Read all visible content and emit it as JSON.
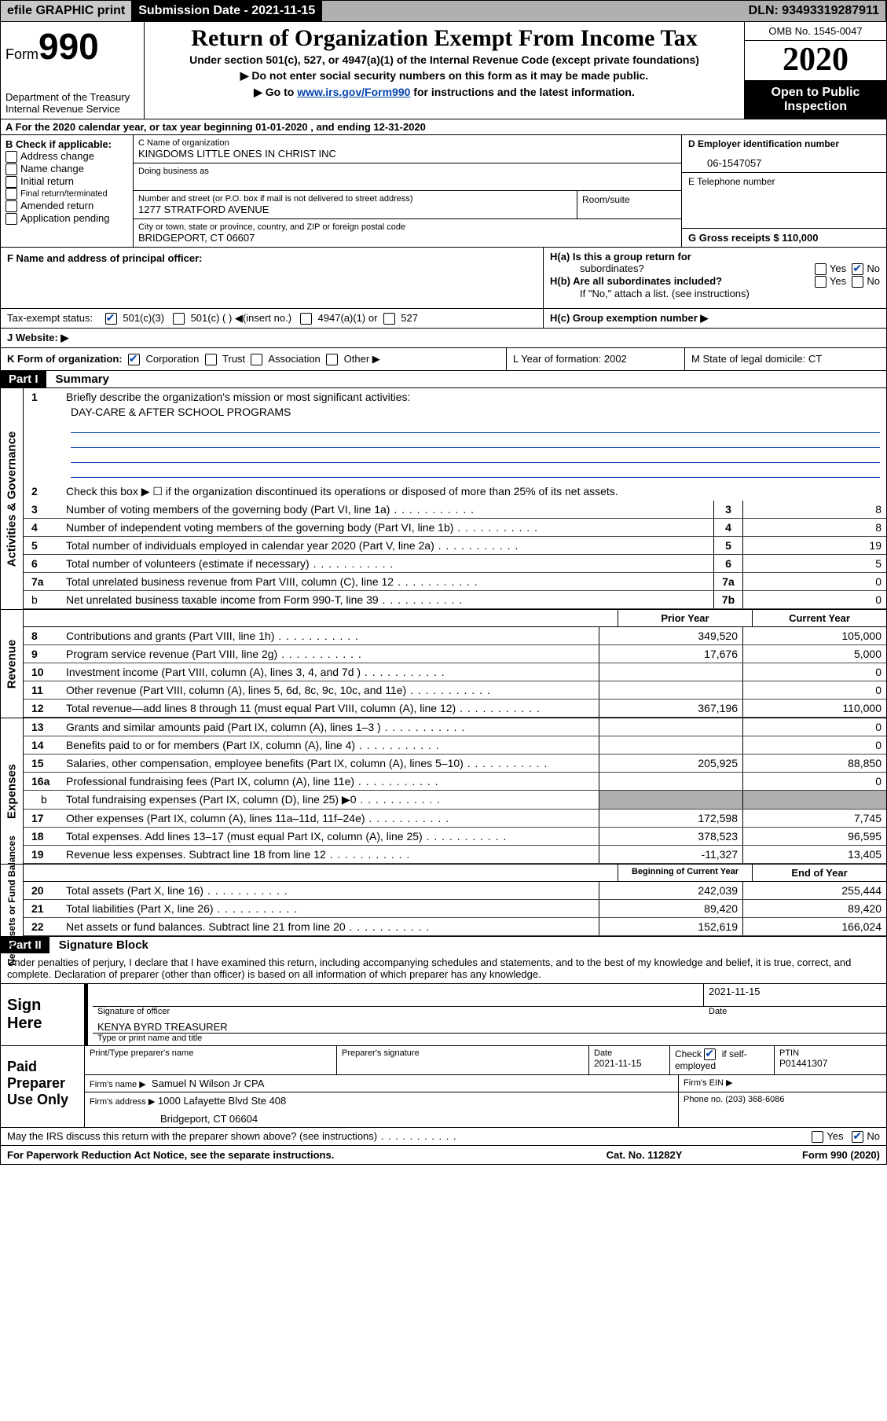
{
  "topbar": {
    "efile": "efile GRAPHIC print",
    "submission_label": "Submission Date - 2021-11-15",
    "dln_label": "DLN: 93493319287911"
  },
  "header": {
    "form_label": "Form",
    "form_number": "990",
    "dept1": "Department of the Treasury",
    "dept2": "Internal Revenue Service",
    "title": "Return of Organization Exempt From Income Tax",
    "sub": "Under section 501(c), 527, or 4947(a)(1) of the Internal Revenue Code (except private foundations)",
    "note1": "▶ Do not enter social security numbers on this form as it may be made public.",
    "note2_pre": "▶ Go to ",
    "note2_link": "www.irs.gov/Form990",
    "note2_post": " for instructions and the latest information.",
    "omb": "OMB No. 1545-0047",
    "year": "2020",
    "open_pub": "Open to Public Inspection"
  },
  "row_a": {
    "text": "A For the 2020 calendar year, or tax year beginning 01-01-2020    , and ending 12-31-2020"
  },
  "col_b": {
    "label": "B Check if applicable:",
    "opts": [
      "Address change",
      "Name change",
      "Initial return",
      "Final return/terminated",
      "Amended return",
      "Application pending"
    ]
  },
  "col_c": {
    "name_lbl": "C Name of organization",
    "name_val": "KINGDOMS LITTLE ONES IN CHRIST INC",
    "dba_lbl": "Doing business as",
    "street_lbl": "Number and street (or P.O. box if mail is not delivered to street address)",
    "street_val": "1277 STRATFORD AVENUE",
    "room_lbl": "Room/suite",
    "city_lbl": "City or town, state or province, country, and ZIP or foreign postal code",
    "city_val": "BRIDGEPORT, CT  06607"
  },
  "col_de": {
    "d_lbl": "D Employer identification number",
    "d_val": "06-1547057",
    "e_lbl": "E Telephone number",
    "g_lbl": "G Gross receipts $ 110,000"
  },
  "f": {
    "lbl": "F  Name and address of principal officer:"
  },
  "h": {
    "a_lbl": "H(a)  Is this a group return for",
    "a_lbl2": "subordinates?",
    "b_lbl": "H(b)  Are all subordinates included?",
    "note": "If \"No,\" attach a list. (see instructions)",
    "c_lbl": "H(c)  Group exemption number ▶",
    "yes": "Yes",
    "no": "No"
  },
  "i": {
    "lbl": "Tax-exempt status:",
    "opts": [
      "501(c)(3)",
      "501(c) (  ) ◀(insert no.)",
      "4947(a)(1) or",
      "527"
    ]
  },
  "j": {
    "lbl": "J   Website: ▶"
  },
  "k": {
    "lbl": "K Form of organization:",
    "opts": [
      "Corporation",
      "Trust",
      "Association",
      "Other ▶"
    ]
  },
  "l": {
    "text": "L Year of formation: 2002"
  },
  "m": {
    "text": "M State of legal domicile: CT"
  },
  "part1": {
    "header": "Part I",
    "title": "Summary"
  },
  "summary": {
    "l1_lbl": "Briefly describe the organization's mission or most significant activities:",
    "l1_val": "DAY-CARE & AFTER SCHOOL PROGRAMS",
    "l2_lbl": "Check this box ▶ ☐  if the organization discontinued its operations or disposed of more than 25% of its net assets."
  },
  "side_labels": {
    "s1": "Activities & Governance",
    "s2": "Revenue",
    "s3": "Expenses",
    "s4": "Net Assets or Fund Balances"
  },
  "lines_a": [
    {
      "n": "3",
      "d": "Number of voting members of the governing body (Part VI, line 1a)",
      "b": "3",
      "v": "8"
    },
    {
      "n": "4",
      "d": "Number of independent voting members of the governing body (Part VI, line 1b)",
      "b": "4",
      "v": "8"
    },
    {
      "n": "5",
      "d": "Total number of individuals employed in calendar year 2020 (Part V, line 2a)",
      "b": "5",
      "v": "19"
    },
    {
      "n": "6",
      "d": "Total number of volunteers (estimate if necessary)",
      "b": "6",
      "v": "5"
    },
    {
      "n": "7a",
      "d": "Total unrelated business revenue from Part VIII, column (C), line 12",
      "b": "7a",
      "v": "0"
    },
    {
      "n": "",
      "d": "Net unrelated business taxable income from Form 990-T, line 39",
      "b": "7b",
      "v": "0",
      "sub": "b"
    }
  ],
  "col_headers": {
    "prior": "Prior Year",
    "current": "Current Year",
    "begin": "Beginning of Current Year",
    "end": "End of Year"
  },
  "lines_rev": [
    {
      "n": "8",
      "d": "Contributions and grants (Part VIII, line 1h)",
      "p": "349,520",
      "c": "105,000"
    },
    {
      "n": "9",
      "d": "Program service revenue (Part VIII, line 2g)",
      "p": "17,676",
      "c": "5,000"
    },
    {
      "n": "10",
      "d": "Investment income (Part VIII, column (A), lines 3, 4, and 7d )",
      "p": "",
      "c": "0"
    },
    {
      "n": "11",
      "d": "Other revenue (Part VIII, column (A), lines 5, 6d, 8c, 9c, 10c, and 11e)",
      "p": "",
      "c": "0"
    },
    {
      "n": "12",
      "d": "Total revenue—add lines 8 through 11 (must equal Part VIII, column (A), line 12)",
      "p": "367,196",
      "c": "110,000"
    }
  ],
  "lines_exp": [
    {
      "n": "13",
      "d": "Grants and similar amounts paid (Part IX, column (A), lines 1–3 )",
      "p": "",
      "c": "0"
    },
    {
      "n": "14",
      "d": "Benefits paid to or for members (Part IX, column (A), line 4)",
      "p": "",
      "c": "0"
    },
    {
      "n": "15",
      "d": "Salaries, other compensation, employee benefits (Part IX, column (A), lines 5–10)",
      "p": "205,925",
      "c": "88,850"
    },
    {
      "n": "16a",
      "d": "Professional fundraising fees (Part IX, column (A), line 11e)",
      "p": "",
      "c": "0"
    },
    {
      "n": "b",
      "d": "Total fundraising expenses (Part IX, column (D), line 25) ▶0",
      "p": "shade",
      "c": "shade",
      "sub": true
    },
    {
      "n": "17",
      "d": "Other expenses (Part IX, column (A), lines 11a–11d, 11f–24e)",
      "p": "172,598",
      "c": "7,745"
    },
    {
      "n": "18",
      "d": "Total expenses. Add lines 13–17 (must equal Part IX, column (A), line 25)",
      "p": "378,523",
      "c": "96,595"
    },
    {
      "n": "19",
      "d": "Revenue less expenses. Subtract line 18 from line 12",
      "p": "-11,327",
      "c": "13,405"
    }
  ],
  "lines_net": [
    {
      "n": "20",
      "d": "Total assets (Part X, line 16)",
      "p": "242,039",
      "c": "255,444"
    },
    {
      "n": "21",
      "d": "Total liabilities (Part X, line 26)",
      "p": "89,420",
      "c": "89,420"
    },
    {
      "n": "22",
      "d": "Net assets or fund balances. Subtract line 21 from line 20",
      "p": "152,619",
      "c": "166,024"
    }
  ],
  "part2": {
    "header": "Part II",
    "title": "Signature Block",
    "penalty": "Under penalties of perjury, I declare that I have examined this return, including accompanying schedules and statements, and to the best of my knowledge and belief, it is true, correct, and complete. Declaration of preparer (other than officer) is based on all information of which preparer has any knowledge."
  },
  "sign": {
    "here": "Sign Here",
    "sig_officer": "Signature of officer",
    "date_lbl": "Date",
    "date_val": "2021-11-15",
    "name_title": "KENYA BYRD  TREASURER",
    "name_title_lbl": "Type or print name and title"
  },
  "paid": {
    "lbl": "Paid Preparer Use Only",
    "c1": "Print/Type preparer's name",
    "c2": "Preparer's signature",
    "c3_lbl": "Date",
    "c3_val": "2021-11-15",
    "c4_lbl": "Check ☑ if self-employed",
    "c5_lbl": "PTIN",
    "c5_val": "P01441307",
    "firm_name_lbl": "Firm's name   ▶",
    "firm_name_val": "Samuel N Wilson Jr CPA",
    "firm_ein_lbl": "Firm's EIN ▶",
    "firm_addr_lbl": "Firm's address ▶",
    "firm_addr_val1": "1000 Lafayette Blvd Ste 408",
    "firm_addr_val2": "Bridgeport, CT  06604",
    "phone_lbl": "Phone no. (203) 368-6086"
  },
  "discuss": {
    "text": "May the IRS discuss this return with the preparer shown above? (see instructions)",
    "yes": "Yes",
    "no": "No"
  },
  "footer": {
    "l": "For Paperwork Reduction Act Notice, see the separate instructions.",
    "m": "Cat. No. 11282Y",
    "r": "Form 990 (2020)"
  },
  "colors": {
    "link": "#0645ad",
    "shade": "#b0b0b0"
  }
}
